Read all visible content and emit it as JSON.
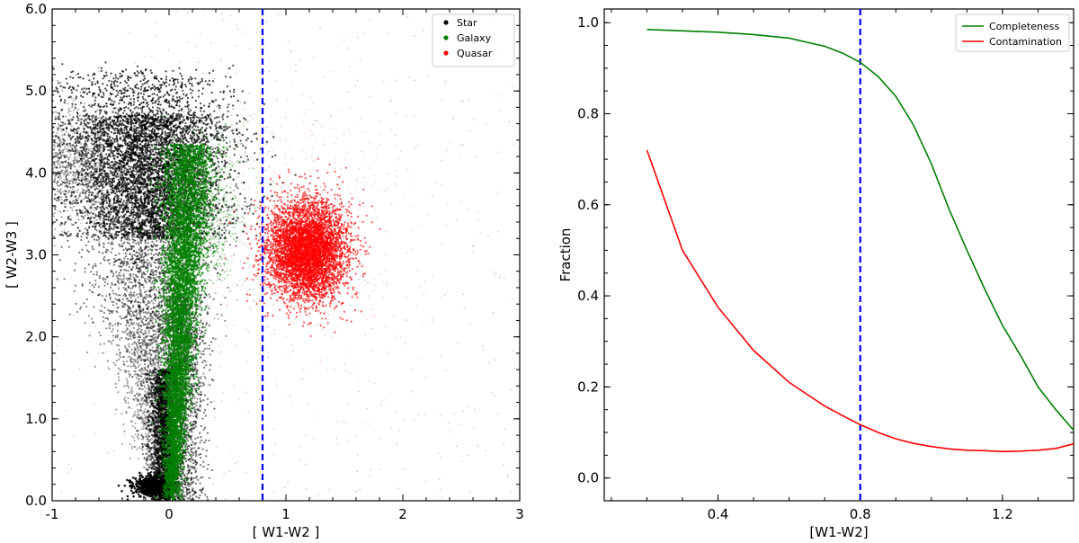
{
  "chart_data": [
    {
      "type": "scatter",
      "xlabel": "[ W1-W2 ]",
      "ylabel": "[ W2-W3 ]",
      "xlim": [
        -1,
        3
      ],
      "ylim": [
        0,
        6
      ],
      "x_ticks": [
        -1,
        0,
        1,
        2,
        3
      ],
      "x_tick_labels": [
        "-1",
        "0",
        "1",
        "2",
        "3"
      ],
      "y_ticks": [
        0,
        1,
        2,
        3,
        4,
        5,
        6
      ],
      "y_tick_labels": [
        "0.0",
        "1.0",
        "2.0",
        "3.0",
        "4.0",
        "5.0",
        "6.0"
      ],
      "vline": {
        "x": 0.8,
        "color": "#0000ff",
        "style": "dashed"
      },
      "legend": {
        "placement": "top-right"
      },
      "grid": false,
      "series": [
        {
          "name": "Star",
          "color": "#000000",
          "description_points": [
            [
              -0.25,
              4.6
            ],
            [
              -0.15,
              3.8
            ],
            [
              -0.1,
              3.0
            ],
            [
              -0.05,
              2.0
            ],
            [
              0.0,
              1.0
            ],
            [
              0.05,
              0.3
            ],
            [
              0.2,
              4.0
            ],
            [
              0.35,
              4.3
            ],
            [
              -0.6,
              4.5
            ],
            [
              -1.0,
              4.8
            ]
          ]
        },
        {
          "name": "Galaxy",
          "color": "#008000",
          "description_points": [
            [
              0.1,
              4.2
            ],
            [
              0.15,
              3.8
            ],
            [
              0.15,
              3.0
            ],
            [
              0.12,
              2.2
            ],
            [
              0.1,
              1.4
            ],
            [
              0.05,
              0.8
            ],
            [
              0.0,
              0.3
            ],
            [
              0.3,
              4.2
            ],
            [
              0.45,
              4.0
            ]
          ]
        },
        {
          "name": "Quasar",
          "color": "#ff0000",
          "description_points": [
            [
              1.0,
              3.1
            ],
            [
              1.2,
              3.1
            ],
            [
              1.4,
              3.1
            ],
            [
              1.1,
              2.7
            ],
            [
              1.2,
              3.6
            ],
            [
              0.85,
              3.0
            ],
            [
              1.55,
              3.0
            ],
            [
              1.3,
              2.8
            ],
            [
              1.0,
              3.4
            ]
          ]
        }
      ]
    },
    {
      "type": "line",
      "xlabel": "[W1-W2]",
      "ylabel": "Fraction",
      "xlim": [
        0.08,
        1.4
      ],
      "ylim": [
        -0.05,
        1.03
      ],
      "x_ticks": [
        0.4,
        0.8,
        1.2
      ],
      "x_tick_labels": [
        "0.4",
        "0.8",
        "1.2"
      ],
      "y_ticks": [
        0.0,
        0.2,
        0.4,
        0.6,
        0.8,
        1.0
      ],
      "y_tick_labels": [
        "0.0",
        "0.2",
        "0.4",
        "0.6",
        "0.8",
        "1.0"
      ],
      "vline": {
        "x": 0.8,
        "color": "#0000ff",
        "style": "dashed"
      },
      "legend": {
        "placement": "top-right"
      },
      "grid": false,
      "x": [
        0.2,
        0.3,
        0.4,
        0.5,
        0.6,
        0.7,
        0.75,
        0.8,
        0.85,
        0.9,
        0.95,
        1.0,
        1.05,
        1.1,
        1.15,
        1.2,
        1.25,
        1.3,
        1.35,
        1.4
      ],
      "series": [
        {
          "name": "Completeness",
          "color": "#008000",
          "values": [
            0.985,
            0.982,
            0.979,
            0.974,
            0.966,
            0.948,
            0.933,
            0.913,
            0.882,
            0.838,
            0.775,
            0.69,
            0.59,
            0.5,
            0.415,
            0.335,
            0.27,
            0.2,
            0.15,
            0.105
          ]
        },
        {
          "name": "Contamination",
          "color": "#ff0000",
          "values": [
            0.72,
            0.5,
            0.375,
            0.28,
            0.21,
            0.158,
            0.137,
            0.117,
            0.1,
            0.086,
            0.076,
            0.069,
            0.064,
            0.061,
            0.06,
            0.058,
            0.059,
            0.061,
            0.065,
            0.075
          ]
        }
      ]
    }
  ]
}
